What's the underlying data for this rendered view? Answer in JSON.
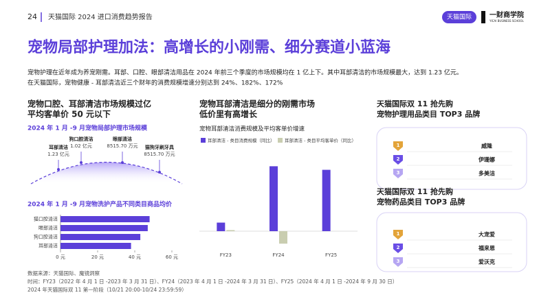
{
  "header": {
    "page_number": "24",
    "report_title": "天猫国际 2024 进口消费趋势报告",
    "brand_tag": "天猫国际",
    "brand_name": "一财商学院",
    "brand_sub": "YICAI BUSINESS SCHOOL"
  },
  "title": "宠物局部护理加法：高增长的小刚需、细分赛道小蓝海",
  "intro": [
    "宠物护理在近年成为养宠刚需。耳部、口腔、眼部清洁用品在 2024 年前三个季度的市场规模均在 1 亿上下。其中耳部清洁的市场规模最大，达到 1.23 亿元。",
    "在天猫国际，宠物健康 - 耳部清洁近三个财年的消费规模增速分别达到 24%、182%、172%"
  ],
  "market_size": {
    "heading": [
      "宠物口腔、耳部清洁市场规模过亿",
      "平均客单价 50 元以下"
    ],
    "subtitle": "2024 年 1 月 -9 月宠物局部护理市场规模",
    "items": [
      {
        "name": "耳部清洁",
        "value": "1.23 亿元"
      },
      {
        "name": "狗口腔清洁",
        "value": "1.02 亿元"
      },
      {
        "name": "眼部清洁",
        "value": "8515.70 万元"
      },
      {
        "name": "猫狗牙刷牙具",
        "value": "8515.70 万元"
      }
    ]
  },
  "chart_data": [
    {
      "type": "hbar",
      "title": "2024 年 1 月 -9 月宠物洗护产品不同类目商品均价",
      "categories": [
        "猫口腔清洁",
        "眼部清洁",
        "狗口腔清洁",
        "耳部清洁"
      ],
      "values": [
        48,
        47,
        43,
        38
      ],
      "color": "#5b3fd9",
      "xlim": [
        0,
        60
      ],
      "xticks": [
        {
          "value": 0,
          "label": "0 元"
        },
        {
          "value": 20,
          "label": "20 元"
        },
        {
          "value": 40,
          "label": "40 元"
        },
        {
          "value": 60,
          "label": "60 元"
        }
      ]
    },
    {
      "type": "bar",
      "heading": [
        "宠物耳部清洁是细分的刚需市场",
        "低价里有高增长"
      ],
      "title": "宠物耳部清洁消费规模及平均客单价增速",
      "categories": [
        "FY23",
        "FY24",
        "FY25"
      ],
      "ylim": [
        -50,
        200
      ],
      "legend": "top",
      "series": [
        {
          "name": "耳部清洁 - 类目消费规模（同比）",
          "color": "#5b3fd9",
          "values": [
            24,
            182,
            172
          ]
        },
        {
          "name": "耳部清洁 - 类目平均客单价（同比）",
          "color": "#c9cdb0",
          "values": [
            3,
            -35,
            0
          ]
        }
      ]
    }
  ],
  "top_brands": [
    {
      "heading": [
        "天猫国际双 11 抢先购",
        "宠物护理用品类目 TOP3 品牌"
      ],
      "ranks": [
        "1",
        "2",
        "3"
      ],
      "brands": [
        "威隆",
        "伊珊娜",
        "多美洁"
      ]
    },
    {
      "heading": [
        "天猫国际双 11 抢先购",
        "宠物药品类目 TOP3 品牌"
      ],
      "ranks": [
        "1",
        "2",
        "3"
      ],
      "brands": [
        "大宠爱",
        "福来恩",
        "爱沃克"
      ]
    }
  ],
  "footer": [
    "数据来源：天猫国际、魔镜洞察",
    "时间：FY23（2022 年 4 月 1 日 -2023 年 3 月 31 日）、FY24（2023 年 4 月 1 日 -2024 年 3 月 31 日）、FY25（2024 年 4 月 1 日 -2024 年 9 月 30 日）",
    "2024 年天猫国际双 11 第一阶段（10/21 20:00-10/24 23:59:59）"
  ]
}
